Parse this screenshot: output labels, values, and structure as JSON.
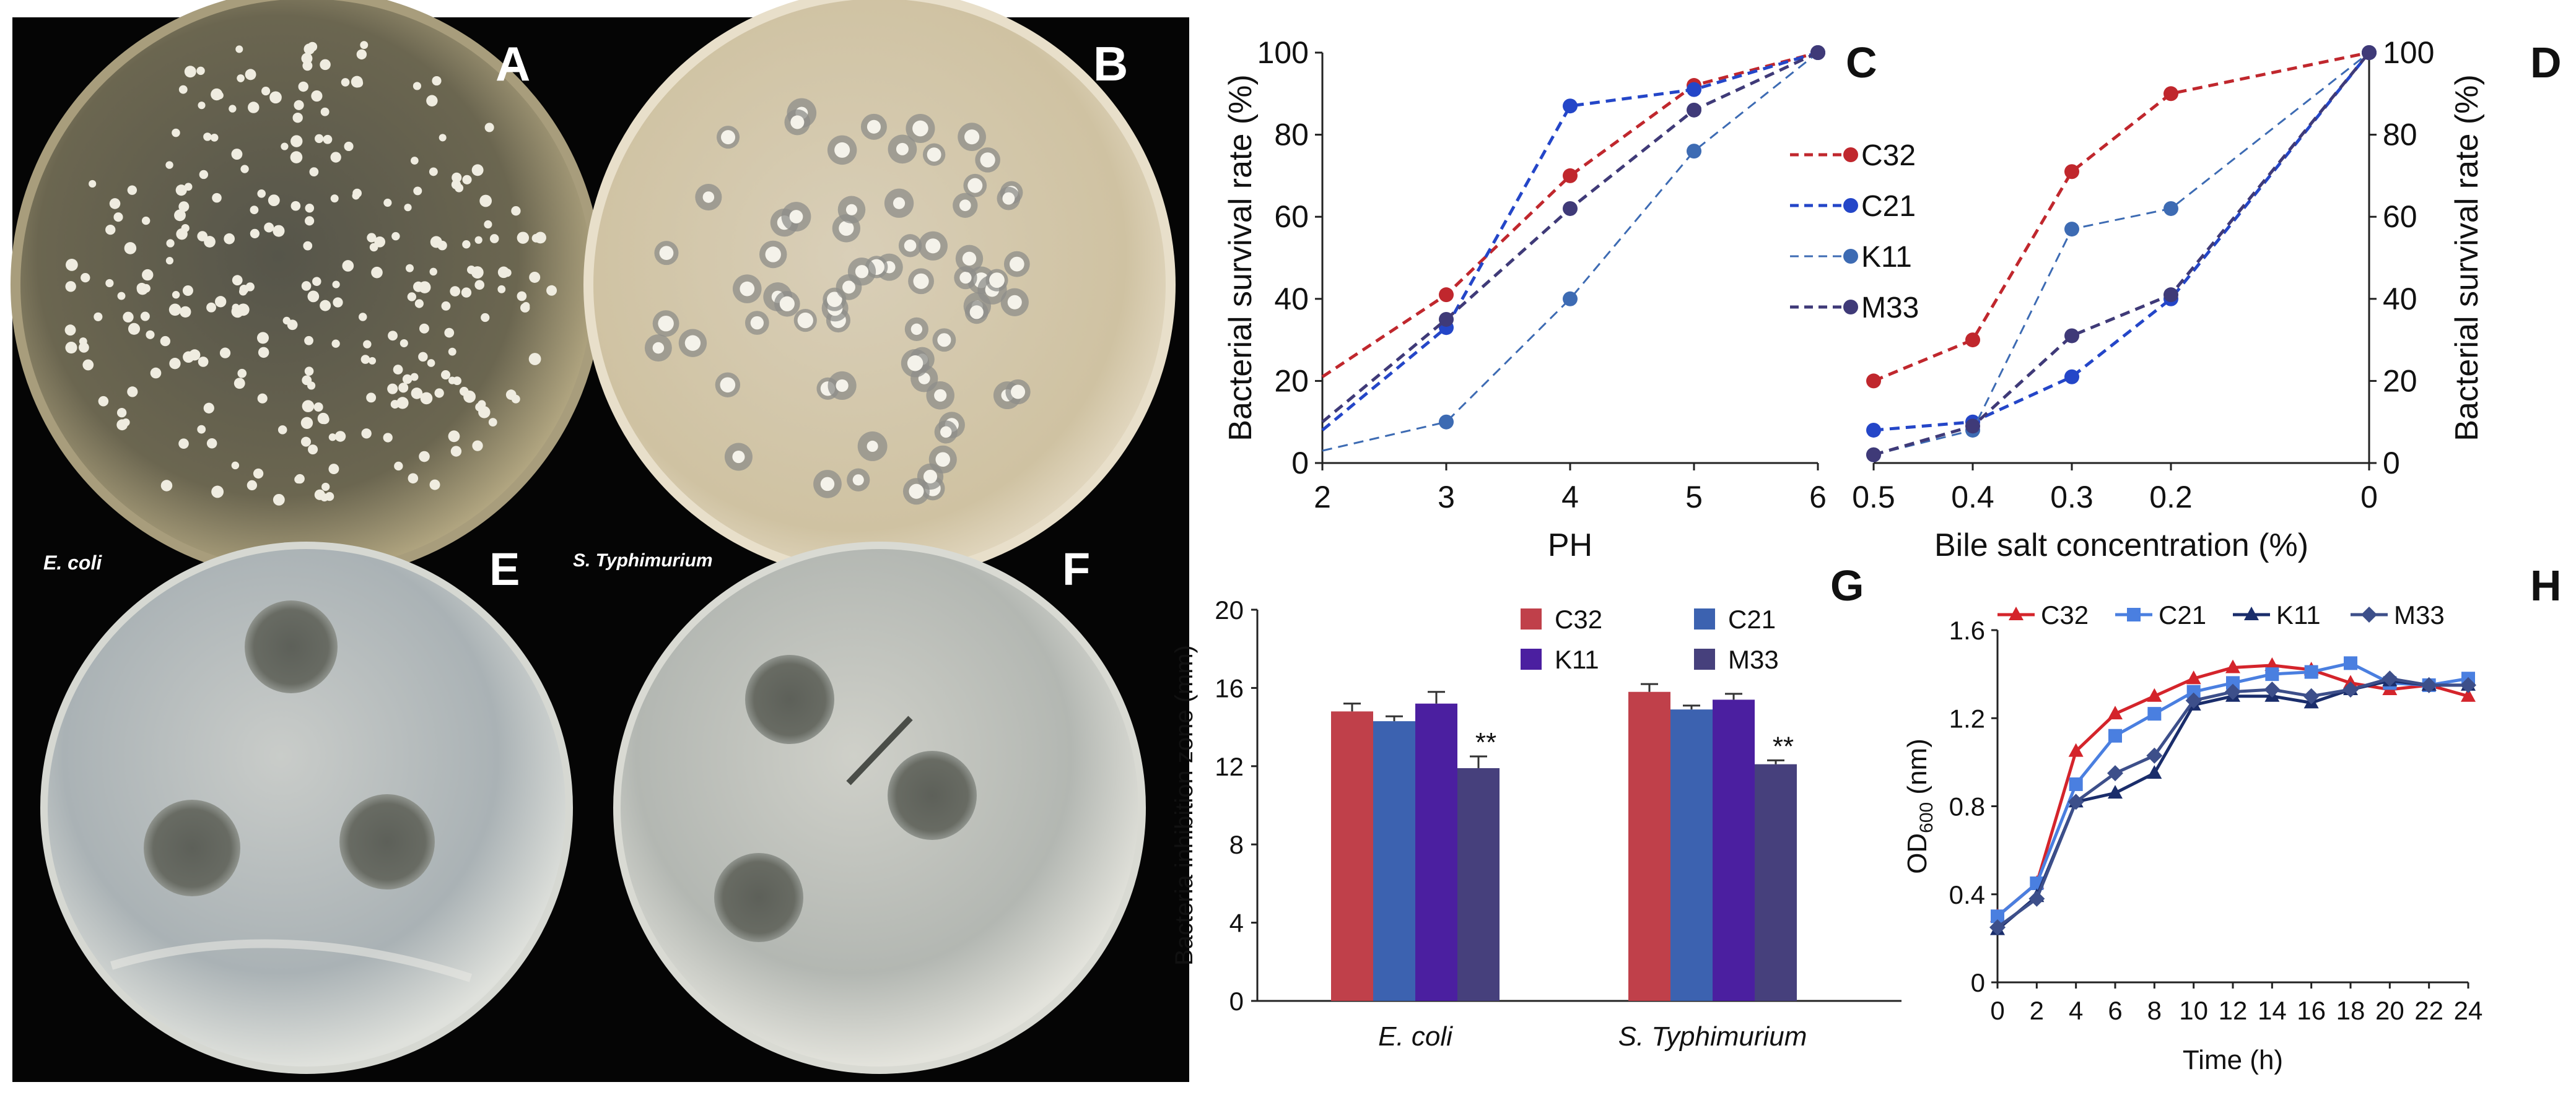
{
  "photos": {
    "A": {
      "letter": "A"
    },
    "B": {
      "letter": "B"
    },
    "E": {
      "letter": "E",
      "caption": "E. coli"
    },
    "F": {
      "letter": "F",
      "caption": "S. Typhimurium"
    }
  },
  "legend_CD": [
    "C32",
    "C21",
    "K11",
    "M33"
  ],
  "colors": {
    "C32": "#c0272d",
    "C21": "#2446c8",
    "K11": "#3d6bb3",
    "M33": "#3f3a78",
    "G_C32": "#c0404a",
    "G_C21": "#3c62b0",
    "G_K11": "#4b1fa0",
    "G_M33": "#46407c",
    "H_C32": "#d4242b",
    "H_C21": "#4a7fe0",
    "H_K11": "#1a2d6b",
    "H_M33": "#3d4f8a"
  },
  "chart_data": [
    {
      "panel": "C",
      "type": "line",
      "xlabel": "PH",
      "ylabel": "Bacterial survival rate (%)",
      "xlim": [
        2,
        6
      ],
      "ylim": [
        0,
        100
      ],
      "xticks": [
        2,
        3,
        4,
        5,
        6
      ],
      "yticks": [
        0,
        20,
        40,
        60,
        80,
        100
      ],
      "series": [
        {
          "name": "C32",
          "x": [
            2,
            3,
            4,
            5,
            6
          ],
          "y": [
            21,
            41,
            70,
            92,
            100
          ]
        },
        {
          "name": "C21",
          "x": [
            2,
            3,
            4,
            5,
            6
          ],
          "y": [
            8,
            33,
            87,
            91,
            100
          ]
        },
        {
          "name": "K11",
          "x": [
            2,
            3,
            4,
            5,
            6
          ],
          "y": [
            3,
            10,
            40,
            76,
            100
          ]
        },
        {
          "name": "M33",
          "x": [
            2,
            3,
            4,
            5,
            6
          ],
          "y": [
            10,
            35,
            62,
            86,
            100
          ]
        }
      ]
    },
    {
      "panel": "D",
      "type": "line",
      "xlabel": "Bile salt concentration (%)",
      "ylabel": "Bacterial survival rate (%)",
      "xlim": [
        0.5,
        0
      ],
      "ylim": [
        0,
        100
      ],
      "xticks": [
        0.5,
        0.4,
        0.3,
        0.2,
        0
      ],
      "yticks": [
        0,
        20,
        40,
        60,
        80,
        100
      ],
      "series": [
        {
          "name": "C32",
          "x": [
            0.5,
            0.4,
            0.3,
            0.2,
            0
          ],
          "y": [
            20,
            30,
            71,
            90,
            100
          ]
        },
        {
          "name": "C21",
          "x": [
            0.5,
            0.4,
            0.3,
            0.2,
            0
          ],
          "y": [
            8,
            10,
            21,
            40,
            100
          ]
        },
        {
          "name": "K11",
          "x": [
            0.5,
            0.4,
            0.3,
            0.2,
            0
          ],
          "y": [
            2,
            8,
            57,
            62,
            100
          ]
        },
        {
          "name": "M33",
          "x": [
            0.5,
            0.4,
            0.3,
            0.2,
            0
          ],
          "y": [
            2,
            9,
            31,
            41,
            100
          ]
        }
      ]
    },
    {
      "panel": "G",
      "type": "bar",
      "ylabel": "Bacteria inhibition zone (mm)",
      "ylim": [
        0,
        20
      ],
      "yticks": [
        0,
        4,
        8,
        12,
        16,
        20
      ],
      "categories": [
        "E. coli",
        "S. Typhimurium"
      ],
      "series": [
        {
          "name": "C32",
          "values": [
            14.8,
            15.8
          ],
          "errors": [
            0.4,
            0.4
          ]
        },
        {
          "name": "C21",
          "values": [
            14.3,
            14.9
          ],
          "errors": [
            0.25,
            0.2
          ]
        },
        {
          "name": "K11",
          "values": [
            15.2,
            15.4
          ],
          "errors": [
            0.6,
            0.3
          ]
        },
        {
          "name": "M33",
          "values": [
            11.9,
            12.1
          ],
          "errors": [
            0.6,
            0.2
          ]
        }
      ],
      "annotations": [
        "**",
        "**"
      ]
    },
    {
      "panel": "H",
      "type": "line",
      "xlabel": "Time (h)",
      "ylabel_main": "OD",
      "ylabel_sub": "600",
      "ylabel_unit": " (nm)",
      "xlim": [
        0,
        24
      ],
      "ylim": [
        0,
        1.6
      ],
      "xticks": [
        0,
        2,
        4,
        6,
        8,
        10,
        12,
        14,
        16,
        18,
        20,
        22,
        24
      ],
      "yticks": [
        0,
        0.4,
        0.8,
        1.2,
        1.6
      ],
      "ytick_labels": [
        "0",
        "0.4",
        "0.8",
        "1.2",
        "1.6"
      ],
      "series": [
        {
          "name": "C32",
          "marker": "triangle",
          "x": [
            0,
            2,
            4,
            6,
            8,
            10,
            12,
            14,
            16,
            18,
            20,
            22,
            24
          ],
          "y": [
            0.3,
            0.45,
            1.05,
            1.22,
            1.3,
            1.38,
            1.43,
            1.44,
            1.42,
            1.36,
            1.33,
            1.35,
            1.3
          ]
        },
        {
          "name": "C21",
          "marker": "square",
          "x": [
            0,
            2,
            4,
            6,
            8,
            10,
            12,
            14,
            16,
            18,
            20,
            22,
            24
          ],
          "y": [
            0.3,
            0.45,
            0.9,
            1.12,
            1.22,
            1.32,
            1.36,
            1.4,
            1.41,
            1.45,
            1.36,
            1.35,
            1.38
          ]
        },
        {
          "name": "K11",
          "marker": "triangle",
          "x": [
            0,
            2,
            4,
            6,
            8,
            10,
            12,
            14,
            16,
            18,
            20,
            22,
            24
          ],
          "y": [
            0.24,
            0.39,
            0.82,
            0.86,
            0.95,
            1.26,
            1.3,
            1.3,
            1.27,
            1.33,
            1.37,
            1.35,
            1.35
          ]
        },
        {
          "name": "M33",
          "marker": "diamond",
          "x": [
            0,
            2,
            4,
            6,
            8,
            10,
            12,
            14,
            16,
            18,
            20,
            22,
            24
          ],
          "y": [
            0.25,
            0.38,
            0.82,
            0.95,
            1.03,
            1.28,
            1.32,
            1.33,
            1.3,
            1.33,
            1.38,
            1.35,
            1.35
          ]
        }
      ]
    }
  ]
}
